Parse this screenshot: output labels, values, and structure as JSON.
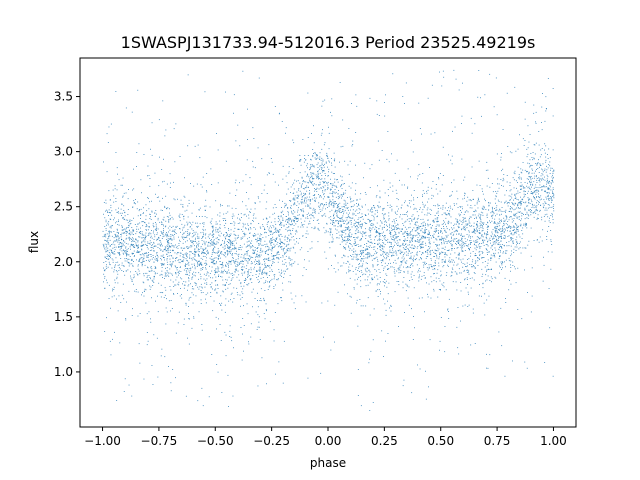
{
  "chart_data": {
    "type": "scatter",
    "title": "1SWASPJ131733.94-512016.3 Period 23525.49219s",
    "xlabel": "phase",
    "ylabel": "flux",
    "xlim": [
      -1.1,
      1.1
    ],
    "ylim": [
      0.5,
      3.85
    ],
    "grid": false,
    "legend": "none",
    "marker_color": "#1f77b4",
    "x_ticks": [
      -1.0,
      -0.75,
      -0.5,
      -0.25,
      0.0,
      0.25,
      0.5,
      0.75,
      1.0
    ],
    "x_tick_labels": [
      "−1.00",
      "−0.75",
      "−0.50",
      "−0.25",
      "0.00",
      "0.25",
      "0.50",
      "0.75",
      "1.00"
    ],
    "y_ticks": [
      1.0,
      1.5,
      2.0,
      2.5,
      3.0,
      3.5
    ],
    "y_tick_labels": [
      "1.0",
      "1.5",
      "2.0",
      "2.5",
      "3.0",
      "3.5"
    ],
    "series": [
      {
        "x_range": [
          -1.0,
          1.0
        ],
        "baseline_flux": 2.15,
        "hump_peak_phase": [
          -0.05,
          0.95
        ],
        "hump_peak_flux": 2.7,
        "min_flux": 0.65,
        "max_flux": 3.75
      }
    ]
  }
}
